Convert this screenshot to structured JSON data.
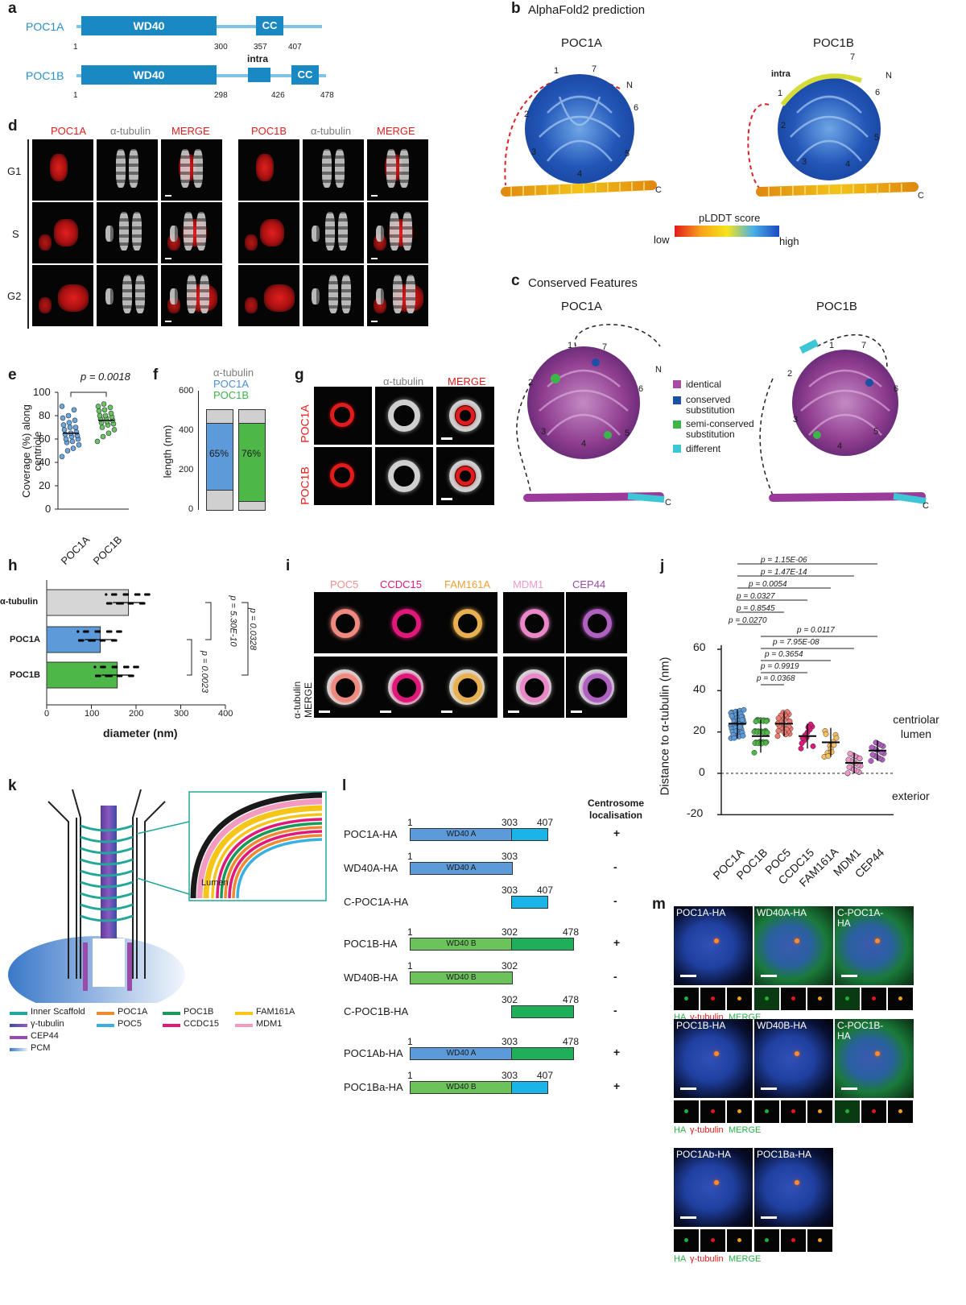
{
  "panels": {
    "a": {
      "letter": "a",
      "poc1a": {
        "name": "POC1A",
        "domain": "WD40",
        "cc": "CC",
        "n1": "1",
        "n2": "300",
        "n3": "357",
        "n4": "407"
      },
      "poc1b": {
        "name": "POC1B",
        "domain": "WD40",
        "intra": "intra",
        "cc": "CC",
        "n1": "1",
        "n2": "298",
        "n3": "426",
        "n4": "478"
      }
    },
    "b": {
      "letter": "b",
      "title": "AlphaFold2 prediction",
      "left": "POC1A",
      "right": "POC1B",
      "intra": "intra",
      "n": "N",
      "c": "C",
      "blades": [
        "1",
        "2",
        "3",
        "4",
        "5",
        "6",
        "7"
      ],
      "legend_title": "pLDDT score",
      "low": "low",
      "high": "high"
    },
    "c": {
      "letter": "c",
      "title": "Conserved Features",
      "left": "POC1A",
      "right": "POC1B",
      "n": "N",
      "c": "C",
      "blades": [
        "1",
        "2",
        "3",
        "4",
        "5",
        "6",
        "7"
      ],
      "legend": [
        {
          "label": "identical",
          "color": "#a64ca6"
        },
        {
          "label": "conserved substitution",
          "color": "#1c4fa6"
        },
        {
          "label": "semi-conserved substitution",
          "color": "#3cb54a"
        },
        {
          "label": "different",
          "color": "#3cc6d6"
        }
      ]
    },
    "d": {
      "letter": "d",
      "left_headers": [
        "POC1A",
        "α-tubulin",
        "MERGE"
      ],
      "right_headers": [
        "POC1B",
        "α-tubulin",
        "MERGE"
      ],
      "rows": [
        "G1",
        "S",
        "G2"
      ]
    },
    "e": {
      "letter": "e",
      "ylabel": "Coverage (%) along centriole",
      "p": "p = 0.0018",
      "yticks": [
        "0",
        "20",
        "40",
        "60",
        "80",
        "100"
      ],
      "xticks": [
        "POC1A",
        "POC1B"
      ]
    },
    "f": {
      "letter": "f",
      "ylabel": "length (nm)",
      "yticks": [
        "0",
        "200",
        "400",
        "600"
      ],
      "legend": [
        "α-tubulin",
        "POC1A",
        "POC1B"
      ],
      "bar1": "65%",
      "bar2": "76%"
    },
    "g": {
      "letter": "g",
      "headers": [
        "α-tubulin",
        "MERGE"
      ],
      "rows": [
        "POC1A",
        "POC1B"
      ]
    },
    "h": {
      "letter": "h",
      "cats": [
        "α-tubulin",
        "POC1A",
        "POC1B"
      ],
      "xlabel": "diameter (nm)",
      "xticks": [
        "0",
        "100",
        "200",
        "300",
        "400"
      ],
      "p1": "p = 5.30E-10",
      "p2": "p = 0.0023",
      "p3": "p = 0.0328"
    },
    "i": {
      "letter": "i",
      "headers": [
        "POC5",
        "CCDC15",
        "FAM161A",
        "MDM1",
        "CEP44"
      ],
      "row2": "α-tubulin MERGE"
    },
    "j": {
      "letter": "j",
      "ylabel": "Distance to α-tubulin (nm)",
      "yticks": [
        "-20",
        "0",
        "20",
        "40",
        "60"
      ],
      "cats": [
        "POC1A",
        "POC1B",
        "POC5",
        "CCDC15",
        "FAM161A",
        "MDM1",
        "CEP44"
      ],
      "pvals_top": [
        "p = 1.15E-06",
        "p = 1.47E-14",
        "p = 0.0054",
        "p = 0.0327",
        "p = 0.8545",
        "p = 0.0270"
      ],
      "pvals_bottom": [
        "p = 0.0117",
        "p = 7.95E-08",
        "p = 0.3654",
        "p = 0.9919",
        "p = 0.0368"
      ],
      "lumen": "centriolar lumen",
      "exterior": "exterior"
    },
    "k": {
      "letter": "k",
      "lumen": "Lumen",
      "legend": [
        {
          "label": "Inner Scaffold",
          "color": "#21a89a"
        },
        {
          "label": "POC1A",
          "color": "#f08a30"
        },
        {
          "label": "POC1B",
          "color": "#1a9a5a"
        },
        {
          "label": "FAM161A",
          "color": "#f5c518"
        },
        {
          "label": "γ-tubulin",
          "color": "#5a3a9a"
        },
        {
          "label": "POC5",
          "color": "#3ab0e0"
        },
        {
          "label": "CCDC15",
          "color": "#e0187a"
        },
        {
          "label": "MDM1",
          "color": "#f39ac0"
        },
        {
          "label": "CEP44",
          "color": "#9a4aa8"
        },
        {
          "label": "PCM",
          "color": "#5b9bd5"
        }
      ]
    },
    "l": {
      "letter": "l",
      "header": "Centrosome localisation",
      "constructs": [
        {
          "name": "POC1A-HA",
          "n1": "1",
          "n2": "303",
          "n3": "407",
          "wd": "WD40 A",
          "result": "+"
        },
        {
          "name": "WD40A-HA",
          "n1": "1",
          "n2": "303",
          "n3": "",
          "wd": "WD40 A",
          "result": "-"
        },
        {
          "name": "C-POC1A-HA",
          "n1": "",
          "n2": "303",
          "n3": "407",
          "wd": "",
          "result": "-"
        },
        {
          "name": "POC1B-HA",
          "n1": "1",
          "n2": "302",
          "n3": "478",
          "wd": "WD40 B",
          "result": "+"
        },
        {
          "name": "WD40B-HA",
          "n1": "1",
          "n2": "302",
          "n3": "",
          "wd": "WD40 B",
          "result": "-"
        },
        {
          "name": "C-POC1B-HA",
          "n1": "",
          "n2": "302",
          "n3": "478",
          "wd": "",
          "result": "-"
        },
        {
          "name": "POC1Ab-HA",
          "n1": "1",
          "n2": "303",
          "n3": "478",
          "wd": "WD40 A",
          "result": "+"
        },
        {
          "name": "POC1Ba-HA",
          "n1": "1",
          "n2": "303",
          "n3": "407",
          "wd": "WD40 B",
          "result": "+"
        }
      ]
    },
    "m": {
      "letter": "m",
      "row1": [
        "POC1A-HA",
        "WD40A-HA",
        "C-POC1A-HA"
      ],
      "row2": [
        "POC1B-HA",
        "WD40B-HA",
        "C-POC1B-HA"
      ],
      "row3": [
        "POC1Ab-HA",
        "POC1Ba-HA"
      ],
      "ha": "HA",
      "gtub": "γ-tubulin",
      "merge": "MERGE"
    }
  }
}
